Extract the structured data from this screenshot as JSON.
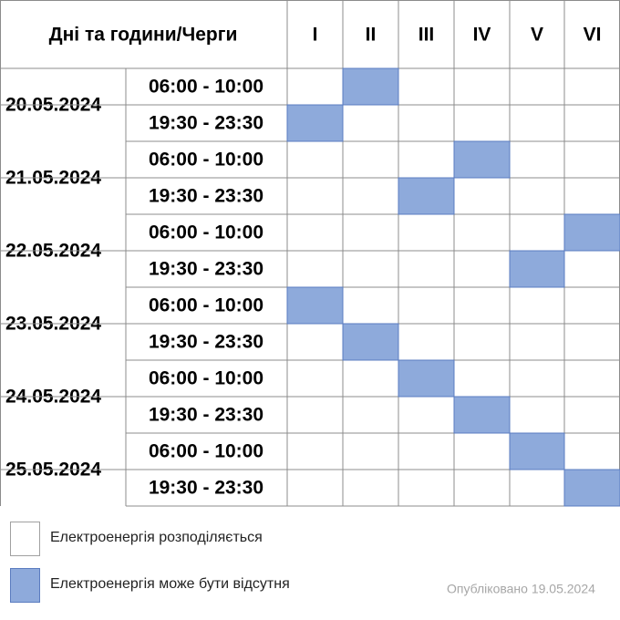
{
  "header": {
    "title": "Дні та години/Черги",
    "queues": [
      "I",
      "II",
      "III",
      "IV",
      "V",
      "VI"
    ]
  },
  "days": [
    {
      "date": "20.05.2024",
      "slots": [
        {
          "time": "06:00 - 10:00",
          "outage": [
            false,
            true,
            false,
            false,
            false,
            false
          ]
        },
        {
          "time": "19:30 - 23:30",
          "outage": [
            true,
            false,
            false,
            false,
            false,
            false
          ]
        }
      ]
    },
    {
      "date": "21.05.2024",
      "slots": [
        {
          "time": "06:00 - 10:00",
          "outage": [
            false,
            false,
            false,
            true,
            false,
            false
          ]
        },
        {
          "time": "19:30 - 23:30",
          "outage": [
            false,
            false,
            true,
            false,
            false,
            false
          ]
        }
      ]
    },
    {
      "date": "22.05.2024",
      "slots": [
        {
          "time": "06:00 - 10:00",
          "outage": [
            false,
            false,
            false,
            false,
            false,
            true
          ]
        },
        {
          "time": "19:30 - 23:30",
          "outage": [
            false,
            false,
            false,
            false,
            true,
            false
          ]
        }
      ]
    },
    {
      "date": "23.05.2024",
      "slots": [
        {
          "time": "06:00 - 10:00",
          "outage": [
            true,
            false,
            false,
            false,
            false,
            false
          ]
        },
        {
          "time": "19:30 - 23:30",
          "outage": [
            false,
            true,
            false,
            false,
            false,
            false
          ]
        }
      ]
    },
    {
      "date": "24.05.2024",
      "slots": [
        {
          "time": "06:00 - 10:00",
          "outage": [
            false,
            false,
            true,
            false,
            false,
            false
          ]
        },
        {
          "time": "19:30 - 23:30",
          "outage": [
            false,
            false,
            false,
            true,
            false,
            false
          ]
        }
      ]
    },
    {
      "date": "25.05.2024",
      "slots": [
        {
          "time": "06:00 - 10:00",
          "outage": [
            false,
            false,
            false,
            false,
            true,
            false
          ]
        },
        {
          "time": "19:30 - 23:30",
          "outage": [
            false,
            false,
            false,
            false,
            false,
            true
          ]
        }
      ]
    }
  ],
  "legend": [
    {
      "label": "Електроенергія розподіляється",
      "outage": false
    },
    {
      "label": "Електроенергія може бути відсутня",
      "outage": true
    }
  ],
  "published": "Опубліковано 19.05.2024"
}
